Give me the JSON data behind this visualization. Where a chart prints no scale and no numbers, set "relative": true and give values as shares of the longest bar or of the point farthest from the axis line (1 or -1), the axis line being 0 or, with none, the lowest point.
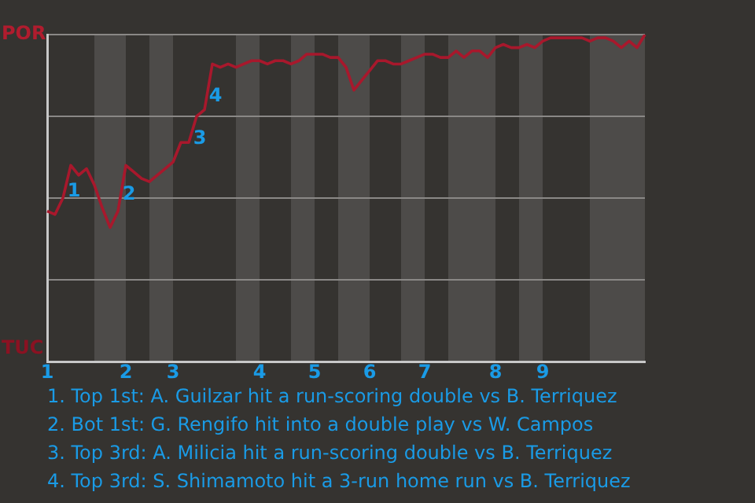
{
  "chart_data": {
    "type": "line",
    "relative": true,
    "categories": [
      "1",
      null,
      null,
      null,
      null,
      null,
      null,
      null,
      null,
      null,
      "2",
      null,
      null,
      null,
      null,
      null,
      "3",
      null,
      null,
      null,
      null,
      null,
      null,
      null,
      null,
      null,
      null,
      "4",
      null,
      null,
      null,
      null,
      null,
      null,
      "5",
      null,
      null,
      null,
      null,
      null,
      null,
      "6",
      null,
      null,
      null,
      null,
      null,
      null,
      "7",
      null,
      null,
      null,
      null,
      null,
      null,
      null,
      null,
      "8",
      null,
      null,
      null,
      null,
      null,
      "9",
      null,
      null,
      null,
      null,
      null,
      null,
      null,
      null,
      null,
      null,
      null,
      null,
      null
    ],
    "series": [
      {
        "color": "#a8182c",
        "values": [
          0.46,
          0.45,
          0.5,
          0.6,
          0.57,
          0.59,
          0.54,
          0.47,
          0.41,
          0.46,
          0.6,
          0.58,
          0.56,
          0.55,
          0.57,
          0.59,
          0.61,
          0.67,
          0.67,
          0.75,
          0.77,
          0.91,
          0.9,
          0.91,
          0.9,
          0.91,
          0.92,
          0.92,
          0.91,
          0.92,
          0.92,
          0.91,
          0.92,
          0.94,
          0.94,
          0.94,
          0.93,
          0.93,
          0.9,
          0.83,
          0.86,
          0.89,
          0.92,
          0.92,
          0.91,
          0.91,
          0.92,
          0.93,
          0.94,
          0.94,
          0.93,
          0.93,
          0.95,
          0.93,
          0.95,
          0.95,
          0.93,
          0.96,
          0.97,
          0.96,
          0.96,
          0.97,
          0.96,
          0.98,
          0.99,
          0.99,
          0.99,
          0.99,
          0.99,
          0.98,
          0.99,
          0.99,
          0.98,
          0.96,
          0.98,
          0.96,
          1
        ]
      }
    ],
    "grid": "y",
    "legend": false,
    "marker": "none",
    "annotations": [
      "POR",
      "TUC",
      "1",
      "2",
      "3",
      "4",
      "1. Top 1st: A. Guilzar hit a run-scoring double vs B. Terriquez",
      "2. Bot 1st: G. Rengifo hit into a double play vs W. Campos",
      "3. Top 3rd: A. Milicia hit a run-scoring double vs B. Terriquez",
      "4. Top 3rd: S. Shimamoto hit a 3-run home run vs B. Terriquez"
    ]
  }
}
